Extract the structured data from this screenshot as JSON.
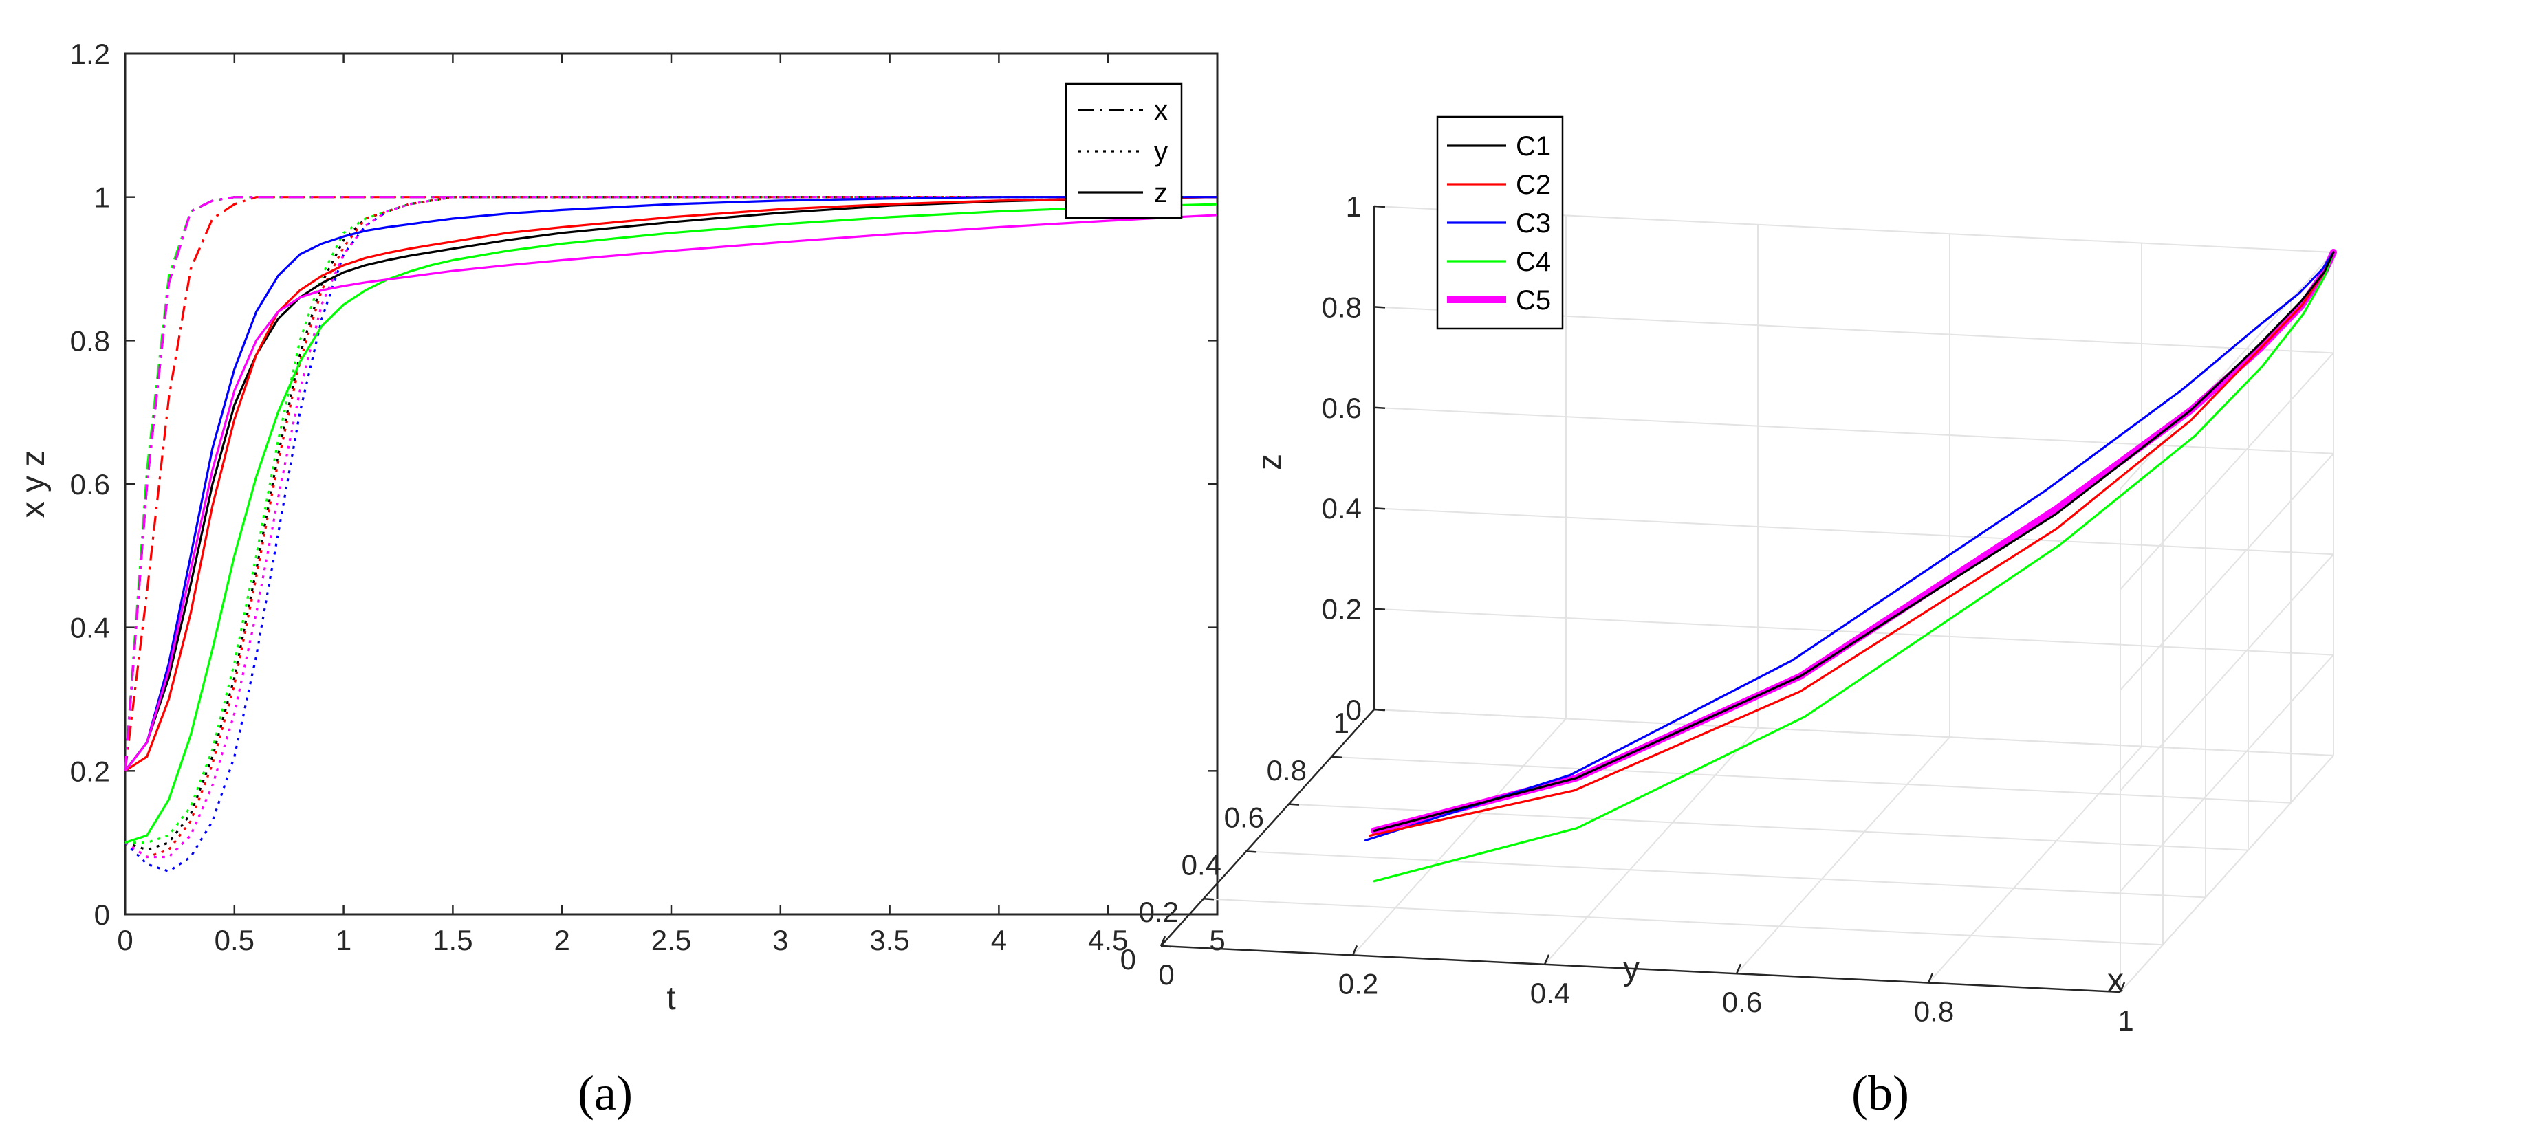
{
  "colors": {
    "c1": "#000000",
    "c2": "#ff0000",
    "c3": "#0000ff",
    "c4": "#00ff00",
    "c5": "#ff00ff"
  },
  "chart_data": [
    {
      "type": "line",
      "panel_label": "(a)",
      "xlabel": "t",
      "ylabel": "x y z",
      "xlim": [
        0,
        5
      ],
      "ylim": [
        0,
        1.2
      ],
      "xticks": [
        "0",
        "0.5",
        "1",
        "1.5",
        "2",
        "2.5",
        "3",
        "3.5",
        "4",
        "4.5",
        "5"
      ],
      "yticks": [
        "0",
        "0.2",
        "0.4",
        "0.6",
        "0.8",
        "1",
        "1.2"
      ],
      "grid": false,
      "legend": {
        "position": "top-right",
        "entries": [
          {
            "label": "x",
            "style": "dash-dot"
          },
          {
            "label": "y",
            "style": "dotted"
          },
          {
            "label": "z",
            "style": "solid"
          }
        ]
      },
      "t": [
        0,
        0.1,
        0.2,
        0.3,
        0.4,
        0.5,
        0.6,
        0.7,
        0.8,
        0.9,
        1.0,
        1.1,
        1.2,
        1.3,
        1.4,
        1.5,
        1.75,
        2.0,
        2.5,
        3.0,
        3.5,
        4.0,
        4.5,
        5.0
      ],
      "series": [
        {
          "variable": "x",
          "color": "black",
          "style": "dash-dot",
          "values": [
            0.2,
            0.6,
            0.88,
            0.98,
            0.995,
            1,
            1,
            1,
            1,
            1,
            1,
            1,
            1,
            1,
            1,
            1,
            1,
            1,
            1,
            1,
            1,
            1,
            1,
            1
          ]
        },
        {
          "variable": "x",
          "color": "red",
          "style": "dash-dot",
          "values": [
            0.2,
            0.45,
            0.72,
            0.9,
            0.97,
            0.99,
            1,
            1,
            1,
            1,
            1,
            1,
            1,
            1,
            1,
            1,
            1,
            1,
            1,
            1,
            1,
            1,
            1,
            1
          ]
        },
        {
          "variable": "x",
          "color": "blue",
          "style": "dash-dot",
          "values": [
            0.2,
            0.6,
            0.88,
            0.98,
            0.995,
            1,
            1,
            1,
            1,
            1,
            1,
            1,
            1,
            1,
            1,
            1,
            1,
            1,
            1,
            1,
            1,
            1,
            1,
            1
          ]
        },
        {
          "variable": "x",
          "color": "green",
          "style": "dash-dot",
          "values": [
            0.2,
            0.62,
            0.89,
            0.98,
            0.995,
            1,
            1,
            1,
            1,
            1,
            1,
            1,
            1,
            1,
            1,
            1,
            1,
            1,
            1,
            1,
            1,
            1,
            1,
            1
          ]
        },
        {
          "variable": "x",
          "color": "magenta",
          "style": "dash-dot",
          "values": [
            0.2,
            0.6,
            0.88,
            0.98,
            0.995,
            1,
            1,
            1,
            1,
            1,
            1,
            1,
            1,
            1,
            1,
            1,
            1,
            1,
            1,
            1,
            1,
            1,
            1,
            1
          ]
        },
        {
          "variable": "y",
          "color": "black",
          "style": "dotted",
          "values": [
            0.1,
            0.09,
            0.1,
            0.14,
            0.22,
            0.33,
            0.48,
            0.64,
            0.78,
            0.88,
            0.94,
            0.97,
            0.98,
            0.99,
            0.995,
            1,
            1,
            1,
            1,
            1,
            1,
            1,
            1,
            1
          ]
        },
        {
          "variable": "y",
          "color": "red",
          "style": "dotted",
          "values": [
            0.1,
            0.08,
            0.09,
            0.13,
            0.21,
            0.32,
            0.47,
            0.63,
            0.77,
            0.87,
            0.93,
            0.97,
            0.98,
            0.99,
            0.995,
            1,
            1,
            1,
            1,
            1,
            1,
            1,
            1,
            1
          ]
        },
        {
          "variable": "y",
          "color": "blue",
          "style": "dotted",
          "values": [
            0.1,
            0.07,
            0.06,
            0.08,
            0.13,
            0.22,
            0.36,
            0.53,
            0.7,
            0.83,
            0.92,
            0.96,
            0.98,
            0.99,
            0.995,
            1,
            1,
            1,
            1,
            1,
            1,
            1,
            1,
            1
          ]
        },
        {
          "variable": "y",
          "color": "green",
          "style": "dotted",
          "values": [
            0.1,
            0.1,
            0.11,
            0.15,
            0.23,
            0.35,
            0.5,
            0.66,
            0.8,
            0.89,
            0.95,
            0.97,
            0.98,
            0.99,
            0.995,
            1,
            1,
            1,
            1,
            1,
            1,
            1,
            1,
            1
          ]
        },
        {
          "variable": "y",
          "color": "magenta",
          "style": "dotted",
          "values": [
            0.1,
            0.08,
            0.08,
            0.11,
            0.18,
            0.28,
            0.42,
            0.58,
            0.73,
            0.85,
            0.92,
            0.96,
            0.98,
            0.99,
            0.995,
            1,
            1,
            1,
            1,
            1,
            1,
            1,
            1,
            1
          ]
        },
        {
          "variable": "z",
          "color": "black",
          "style": "solid",
          "values": [
            0.2,
            0.24,
            0.33,
            0.46,
            0.6,
            0.71,
            0.78,
            0.83,
            0.86,
            0.88,
            0.895,
            0.905,
            0.912,
            0.918,
            0.923,
            0.928,
            0.94,
            0.95,
            0.965,
            0.978,
            0.988,
            0.994,
            0.998,
            1.0
          ]
        },
        {
          "variable": "z",
          "color": "red",
          "style": "solid",
          "values": [
            0.2,
            0.22,
            0.3,
            0.42,
            0.57,
            0.69,
            0.78,
            0.84,
            0.87,
            0.89,
            0.905,
            0.915,
            0.922,
            0.928,
            0.933,
            0.938,
            0.95,
            0.958,
            0.972,
            0.983,
            0.99,
            0.995,
            0.998,
            1.0
          ]
        },
        {
          "variable": "z",
          "color": "blue",
          "style": "solid",
          "values": [
            0.2,
            0.24,
            0.35,
            0.5,
            0.65,
            0.76,
            0.84,
            0.89,
            0.92,
            0.935,
            0.945,
            0.953,
            0.958,
            0.962,
            0.966,
            0.97,
            0.977,
            0.982,
            0.99,
            0.995,
            0.998,
            1.0,
            1.0,
            1.0
          ]
        },
        {
          "variable": "z",
          "color": "green",
          "style": "solid",
          "values": [
            0.1,
            0.11,
            0.16,
            0.25,
            0.37,
            0.5,
            0.61,
            0.7,
            0.77,
            0.82,
            0.85,
            0.87,
            0.885,
            0.896,
            0.905,
            0.912,
            0.925,
            0.935,
            0.95,
            0.962,
            0.972,
            0.98,
            0.986,
            0.99
          ]
        },
        {
          "variable": "z",
          "color": "magenta",
          "style": "solid",
          "values": [
            0.2,
            0.24,
            0.34,
            0.48,
            0.62,
            0.73,
            0.8,
            0.84,
            0.86,
            0.87,
            0.876,
            0.881,
            0.885,
            0.889,
            0.893,
            0.897,
            0.905,
            0.912,
            0.925,
            0.937,
            0.948,
            0.958,
            0.967,
            0.975
          ]
        }
      ]
    },
    {
      "type": "line",
      "subtype": "3d-trajectory",
      "panel_label": "(b)",
      "xlabel": "x",
      "ylabel": "y",
      "zlabel": "z",
      "xlim": [
        0,
        1
      ],
      "ylim": [
        0,
        1
      ],
      "zlim": [
        0,
        1
      ],
      "xticks": [
        "0",
        "0.2",
        "0.4",
        "0.6",
        "0.8",
        "1"
      ],
      "yticks": [
        "0",
        "0.2",
        "0.4",
        "0.6",
        "0.8",
        "1"
      ],
      "zticks": [
        "0",
        "0.2",
        "0.4",
        "0.6",
        "0.8",
        "1"
      ],
      "grid": true,
      "legend": {
        "position": "top-left",
        "entries": [
          "C1",
          "C2",
          "C3",
          "C4",
          "C5"
        ]
      },
      "series": [
        {
          "name": "C1",
          "color": "black",
          "x": [
            0.2,
            0.4,
            0.6,
            0.8,
            0.9,
            0.95,
            0.98,
            0.995,
            1.0
          ],
          "y": [
            0.1,
            0.15,
            0.3,
            0.6,
            0.78,
            0.88,
            0.94,
            0.98,
            1.0
          ],
          "z": [
            0.2,
            0.3,
            0.45,
            0.65,
            0.78,
            0.87,
            0.93,
            0.97,
            1.0
          ]
        },
        {
          "name": "C2",
          "color": "red",
          "x": [
            0.2,
            0.4,
            0.6,
            0.8,
            0.9,
            0.95,
            0.98,
            0.995,
            1.0
          ],
          "y": [
            0.08,
            0.14,
            0.3,
            0.6,
            0.78,
            0.88,
            0.94,
            0.98,
            1.0
          ],
          "z": [
            0.2,
            0.28,
            0.42,
            0.62,
            0.76,
            0.86,
            0.92,
            0.97,
            1.0
          ]
        },
        {
          "name": "C3",
          "color": "blue",
          "x": [
            0.2,
            0.4,
            0.6,
            0.8,
            0.9,
            0.95,
            0.98,
            0.995,
            1.0
          ],
          "y": [
            0.06,
            0.12,
            0.26,
            0.55,
            0.74,
            0.86,
            0.93,
            0.97,
            1.0
          ],
          "z": [
            0.2,
            0.32,
            0.5,
            0.72,
            0.84,
            0.91,
            0.95,
            0.98,
            1.0
          ]
        },
        {
          "name": "C4",
          "color": "green",
          "x": [
            0.2,
            0.4,
            0.6,
            0.8,
            0.9,
            0.95,
            0.98,
            0.995,
            1.0
          ],
          "y": [
            0.1,
            0.15,
            0.32,
            0.62,
            0.8,
            0.89,
            0.95,
            0.98,
            1.0
          ],
          "z": [
            0.1,
            0.2,
            0.36,
            0.58,
            0.72,
            0.82,
            0.9,
            0.96,
            1.0
          ]
        },
        {
          "name": "C5",
          "color": "magenta",
          "x": [
            0.2,
            0.4,
            0.6,
            0.8,
            0.9,
            0.95,
            0.98,
            0.995,
            1.0
          ],
          "y": [
            0.1,
            0.15,
            0.3,
            0.6,
            0.78,
            0.88,
            0.94,
            0.98,
            1.0
          ],
          "z": [
            0.2,
            0.3,
            0.45,
            0.66,
            0.78,
            0.86,
            0.92,
            0.97,
            1.0
          ]
        }
      ]
    }
  ]
}
